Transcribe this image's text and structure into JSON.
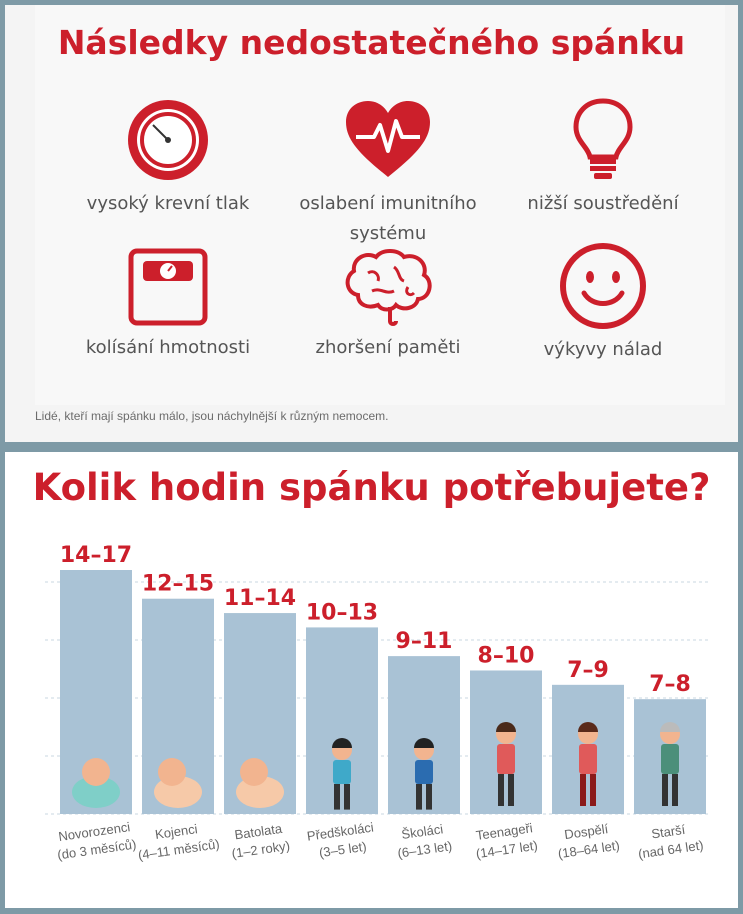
{
  "top": {
    "title": "Následky nedostatečného spánku",
    "effects": [
      {
        "label": "vysoký krevní tlak",
        "icon": "speedometer-icon"
      },
      {
        "label": "oslabení imunitního systému",
        "icon": "heart-pulse-icon"
      },
      {
        "label": "nižší soustředění",
        "icon": "lightbulb-icon"
      },
      {
        "label": "kolísání hmotnosti",
        "icon": "scale-icon"
      },
      {
        "label": "zhoršení paměti",
        "icon": "brain-icon"
      },
      {
        "label": "výkyvy nálad",
        "icon": "smiley-icon"
      }
    ],
    "caption": "Lidé, kteří mají spánku málo, jsou náchylnější k různým nemocem."
  },
  "colors": {
    "accent": "#cc1f2b",
    "bar": "#a9c2d5",
    "grid": "#c9d7e2"
  },
  "chart_data": {
    "type": "bar",
    "title": "Kolik hodin spánku potřebujete?",
    "categories": [
      [
        "Novorozenci",
        "(do 3 měsíců)"
      ],
      [
        "Kojenci",
        "(4–11 měsíců)"
      ],
      [
        "Batolata",
        "(1–2 roky)"
      ],
      [
        "Předškoláci",
        "(3–5 let)"
      ],
      [
        "Školáci",
        "(6–13 let)"
      ],
      [
        "Teenageři",
        "(14–17 let)"
      ],
      [
        "Dospělí",
        "(18–64 let)"
      ],
      [
        "Starší",
        "(nad 64 let)"
      ]
    ],
    "labels": [
      "14–17",
      "12–15",
      "11–14",
      "10–13",
      "9–11",
      "8–10",
      "7–9",
      "7–8"
    ],
    "low": [
      14,
      12,
      11,
      10,
      9,
      8,
      7,
      7
    ],
    "high": [
      17,
      15,
      14,
      13,
      11,
      10,
      9,
      8
    ],
    "ylim": [
      0,
      17
    ],
    "grid": true,
    "figures": [
      "baby-swaddled",
      "baby-sitting",
      "toddler",
      "preschooler",
      "schoolboy",
      "teen-girl",
      "adult-woman",
      "senior-man"
    ]
  }
}
